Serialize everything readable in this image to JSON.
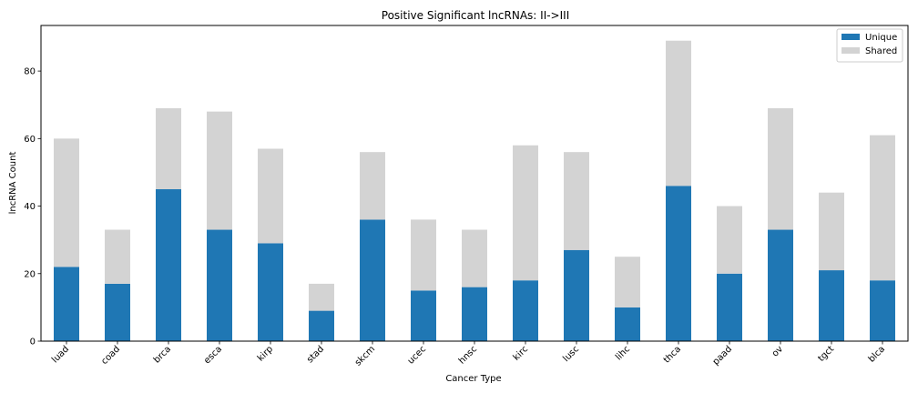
{
  "chart_data": {
    "type": "bar",
    "stacked": true,
    "title": "Positive Significant lncRNAs: II->III",
    "xlabel": "Cancer Type",
    "ylabel": "lncRNA Count",
    "categories": [
      "luad",
      "coad",
      "brca",
      "esca",
      "kirp",
      "stad",
      "skcm",
      "ucec",
      "hnsc",
      "kirc",
      "lusc",
      "lihc",
      "thca",
      "paad",
      "ov",
      "tgct",
      "blca"
    ],
    "series": [
      {
        "name": "Unique",
        "color": "#1f77b4",
        "values": [
          22,
          17,
          45,
          33,
          29,
          9,
          36,
          15,
          16,
          18,
          27,
          10,
          46,
          20,
          33,
          21,
          18
        ]
      },
      {
        "name": "Shared",
        "color": "#d3d3d3",
        "values": [
          38,
          16,
          24,
          35,
          28,
          8,
          20,
          21,
          17,
          40,
          29,
          15,
          43,
          20,
          36,
          23,
          43
        ]
      }
    ],
    "ylim": [
      0,
      93.5
    ],
    "yticks": [
      0,
      20,
      40,
      60,
      80
    ],
    "grid": false,
    "legend_position": "top-right"
  }
}
